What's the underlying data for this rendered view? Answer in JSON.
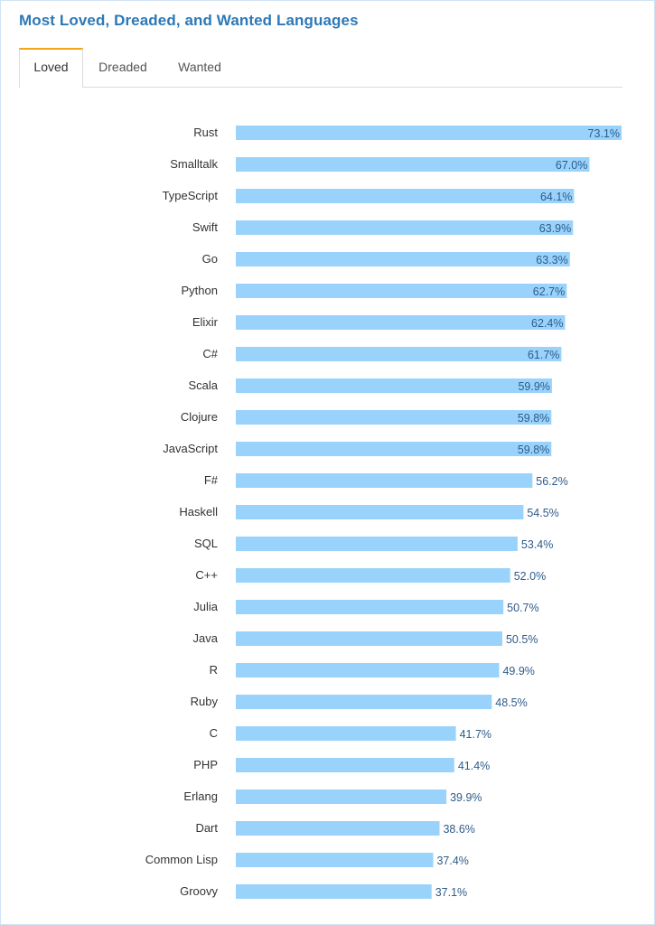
{
  "title": "Most Loved, Dreaded, and Wanted Languages",
  "tabs": [
    {
      "label": "Loved",
      "active": true
    },
    {
      "label": "Dreaded",
      "active": false
    },
    {
      "label": "Wanted",
      "active": false
    }
  ],
  "colors": {
    "title": "#2d78b6",
    "bar": "#99d3fb",
    "value_text": "#2e5b8a",
    "active_tab_accent": "#f2a51a",
    "frame_border": "#cfe3f4"
  },
  "chart_data": {
    "type": "bar",
    "orientation": "horizontal",
    "title": "",
    "xlabel": "",
    "ylabel": "",
    "categories": [
      "Rust",
      "Smalltalk",
      "TypeScript",
      "Swift",
      "Go",
      "Python",
      "Elixir",
      "C#",
      "Scala",
      "Clojure",
      "JavaScript",
      "F#",
      "Haskell",
      "SQL",
      "C++",
      "Julia",
      "Java",
      "R",
      "Ruby",
      "C",
      "PHP",
      "Erlang",
      "Dart",
      "Common Lisp",
      "Groovy"
    ],
    "values": [
      73.1,
      67.0,
      64.1,
      63.9,
      63.3,
      62.7,
      62.4,
      61.7,
      59.9,
      59.8,
      59.8,
      56.2,
      54.5,
      53.4,
      52.0,
      50.7,
      50.5,
      49.9,
      48.5,
      41.7,
      41.4,
      39.9,
      38.6,
      37.4,
      37.1
    ],
    "value_labels": [
      "73.1%",
      "67.0%",
      "64.1%",
      "63.9%",
      "63.3%",
      "62.7%",
      "62.4%",
      "61.7%",
      "59.9%",
      "59.8%",
      "59.8%",
      "56.2%",
      "54.5%",
      "53.4%",
      "52.0%",
      "50.7%",
      "50.5%",
      "49.9%",
      "48.5%",
      "41.7%",
      "41.4%",
      "39.9%",
      "38.6%",
      "37.4%",
      "37.1%"
    ],
    "xlim": [
      0,
      73.1
    ],
    "grid": false,
    "legend": "none"
  }
}
